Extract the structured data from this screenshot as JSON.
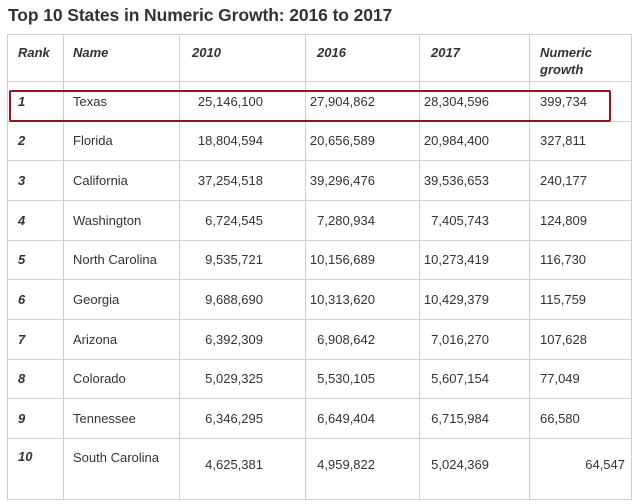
{
  "title": "Top 10 States in Numeric Growth: 2016 to 2017",
  "columns": {
    "rank": "Rank",
    "name": "Name",
    "y2010": "2010",
    "y2016": "2016",
    "y2017": "2017",
    "growth": "Numeric growth"
  },
  "rows": [
    {
      "rank": "1",
      "name": "Texas",
      "y2010": "25,146,100",
      "y2016": "27,904,862",
      "y2017": "28,304,596",
      "growth": "399,734"
    },
    {
      "rank": "2",
      "name": "Florida",
      "y2010": "18,804,594",
      "y2016": "20,656,589",
      "y2017": "20,984,400",
      "growth": "327,811"
    },
    {
      "rank": "3",
      "name": "California",
      "y2010": "37,254,518",
      "y2016": "39,296,476",
      "y2017": "39,536,653",
      "growth": "240,177"
    },
    {
      "rank": "4",
      "name": "Washington",
      "y2010": "6,724,545",
      "y2016": "7,280,934",
      "y2017": "7,405,743",
      "growth": "124,809"
    },
    {
      "rank": "5",
      "name": "North Carolina",
      "y2010": "9,535,721",
      "y2016": "10,156,689",
      "y2017": "10,273,419",
      "growth": "116,730"
    },
    {
      "rank": "6",
      "name": "Georgia",
      "y2010": "9,688,690",
      "y2016": "10,313,620",
      "y2017": "10,429,379",
      "growth": "115,759"
    },
    {
      "rank": "7",
      "name": "Arizona",
      "y2010": "6,392,309",
      "y2016": "6,908,642",
      "y2017": "7,016,270",
      "growth": "107,628"
    },
    {
      "rank": "8",
      "name": "Colorado",
      "y2010": "5,029,325",
      "y2016": "5,530,105",
      "y2017": "5,607,154",
      "growth": "77,049"
    },
    {
      "rank": "9",
      "name": "Tennessee",
      "y2010": "6,346,295",
      "y2016": "6,649,404",
      "y2017": "6,715,984",
      "growth": "66,580"
    },
    {
      "rank": "10",
      "name": "South Carolina",
      "y2010": "4,625,381",
      "y2016": "4,959,822",
      "y2017": "5,024,369",
      "growth": "64,547"
    }
  ],
  "highlight_color": "#8b1a1a"
}
